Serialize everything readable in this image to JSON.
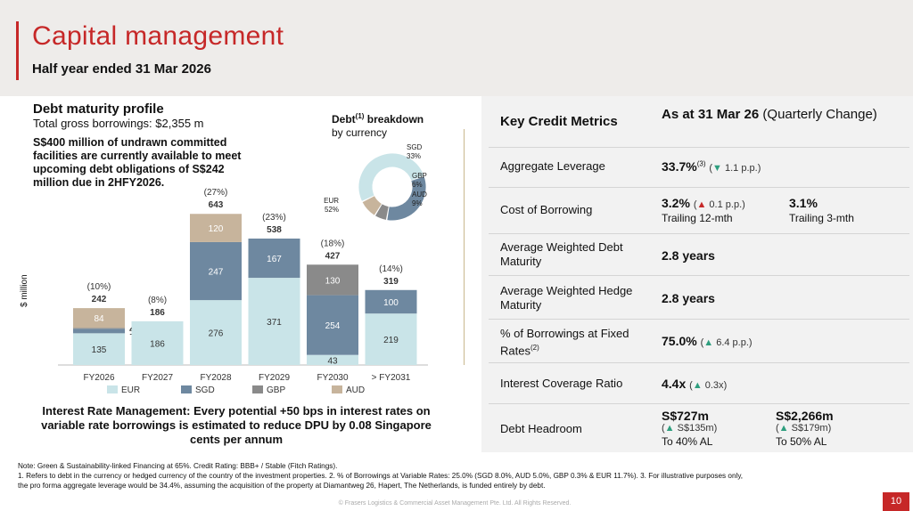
{
  "header": {
    "title": "Capital management",
    "subtitle": "Half year ended 31 Mar 2026"
  },
  "debt_maturity": {
    "title": "Debt maturity profile",
    "total": "Total gross borrowings: $2,355 m",
    "note": "S$400 million of undrawn committed facilities are currently available to meet upcoming debt obligations of S$242 million due in 2HFY2026.",
    "y_label": "$ million"
  },
  "breakdown": {
    "title": "Debt",
    "title_sup": "(1)",
    "title_rest": " breakdown",
    "subtitle": "by currency"
  },
  "chart_data": [
    {
      "type": "bar",
      "stacked": true,
      "categories": [
        "FY2026",
        "FY2027",
        "FY2028",
        "FY2029",
        "FY2030",
        "> FY2031"
      ],
      "series": [
        {
          "name": "EUR",
          "color": "#c9e4e8",
          "values": [
            135,
            186,
            276,
            371,
            43,
            219
          ]
        },
        {
          "name": "SGD",
          "color": "#6e88a0",
          "values": [
            19,
            0,
            247,
            167,
            254,
            100
          ]
        },
        {
          "name": "GBP",
          "color": "#8a8a8a",
          "values": [
            4,
            0,
            0,
            0,
            130,
            0
          ]
        },
        {
          "name": "AUD",
          "color": "#c7b49c",
          "values": [
            84,
            0,
            120,
            0,
            0,
            0
          ]
        }
      ],
      "totals": [
        242,
        186,
        643,
        538,
        427,
        319
      ],
      "pct_labels": [
        "(10%)",
        "(8%)",
        "(27%)",
        "(23%)",
        "(18%)",
        "(14%)"
      ],
      "ylabel": "$ million",
      "legend_position": "bottom",
      "grid": false
    },
    {
      "type": "pie",
      "donut": true,
      "labels": [
        "SGD",
        "GBP",
        "AUD",
        "EUR"
      ],
      "values": [
        33,
        6,
        9,
        52
      ],
      "value_labels": [
        "33%",
        "6%",
        "9%",
        "52%"
      ],
      "colors": [
        "#6e88a0",
        "#8a8a8a",
        "#c7b49c",
        "#c9e4e8"
      ]
    }
  ],
  "metrics": {
    "heading": "Key Credit Metrics",
    "date_heading": "As at 31 Mar 26",
    "date_heading_suffix": " (Quarterly Change)",
    "rows": [
      {
        "label": "Aggregate Leverage",
        "value": "33.7%",
        "sup": "(3)",
        "arrow": "▼",
        "change": " 1.1 p.p."
      },
      {
        "label": "Cost of Borrowing",
        "value": "3.2%",
        "arrow": "▲",
        "change": " 0.1 p.p.",
        "sub": "Trailing 12-mth",
        "value2": "3.1%",
        "sub2": "Trailing 3-mth"
      },
      {
        "label": "Average Weighted Debt Maturity",
        "value": "2.8 years"
      },
      {
        "label": "Average Weighted Hedge Maturity",
        "value": "2.8 years"
      },
      {
        "label": "% of Borrowings at Fixed Rates",
        "label_sup": "(2)",
        "value": "75.0%",
        "arrow": "▲",
        "change": " 6.4 p.p."
      },
      {
        "label": "Interest Coverage Ratio",
        "value": "4.4x",
        "arrow": "▲",
        "change": " 0.3x"
      },
      {
        "label": "Debt Headroom",
        "value": "S$727m",
        "arrow": "▲",
        "change": " S$135m",
        "sub": "To 40% AL",
        "value2": "S$2,266m",
        "arrow2": "▲",
        "change2": " S$179m",
        "sub2": "To 50% AL"
      }
    ]
  },
  "interest_note": "Interest Rate Management: Every potential +50 bps in interest rates on variable rate borrowings is estimated to reduce DPU by 0.08 Singapore cents per annum",
  "footnote": {
    "line1": "Note: Green & Sustainability-linked Financing at 65%. Credit Rating: BBB+ / Stable (Fitch Ratings).",
    "line2": "1. Refers to debt in the currency or hedged currency of the country of the investment properties. 2. % of Borrowings at Variable Rates: 25.0% (SGD 8.0%, AUD 5.0%, GBP 0.3% & EUR 11.7%). 3. For illustrative purposes only,",
    "line3": "the pro forma aggregate leverage would be 34.4%, assuming the acquisition of the property at Diamantweg 26, Hapert, The Netherlands, is funded entirely by debt."
  },
  "copyright": "© Frasers Logistics & Commercial Asset Management Pte. Ltd. All Rights Reserved.",
  "page_number": "10"
}
